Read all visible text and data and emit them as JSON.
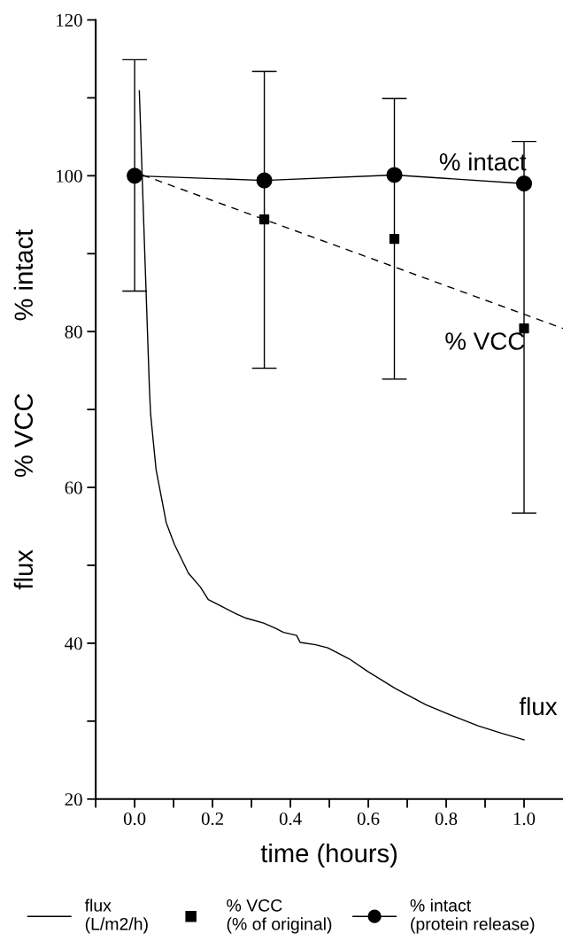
{
  "chart_data": {
    "type": "line",
    "xlabel": "time (hours)",
    "ylabel": "flux          % VCC          % intact",
    "xlim": [
      -0.1,
      1.1
    ],
    "xticks": [
      {
        "value": -0.1,
        "label": null
      },
      {
        "value": 0,
        "label": "0.0"
      },
      {
        "value": 0.1,
        "label": null
      },
      0.2,
      {
        "value": 0.3,
        "label": null
      },
      0.4,
      {
        "value": 0.5,
        "label": null
      },
      0.6,
      {
        "value": 0.7,
        "label": null
      },
      0.8,
      {
        "value": 0.9,
        "label": null
      },
      {
        "value": 1,
        "label": "1.0"
      }
    ],
    "ylim": [
      20,
      120
    ],
    "yticks": [
      20,
      {
        "value": 30,
        "label": null
      },
      40,
      {
        "value": 50,
        "label": null
      },
      60,
      {
        "value": 70,
        "label": null
      },
      80,
      {
        "value": 90,
        "label": null
      },
      100,
      {
        "value": 110,
        "label": null
      },
      120
    ],
    "grid": false,
    "legend": "bottom",
    "series": [
      {
        "name": "flux\n(L/m2/h)",
        "color": "#000000",
        "marker": "none",
        "line_style": "solid",
        "x": [
          0.012,
          0.026,
          0.038,
          0.041,
          0.055,
          0.081,
          0.102,
          0.138,
          0.169,
          0.189,
          0.228,
          0.26,
          0.287,
          0.331,
          0.362,
          0.382,
          0.416,
          0.425,
          0.465,
          0.496,
          0.551,
          0.598,
          0.669,
          0.748,
          0.811,
          0.882,
          0.945,
          1.0
        ],
        "values": [
          110.9,
          90.0,
          72.6,
          69.4,
          62.3,
          55.5,
          52.7,
          49.0,
          47.2,
          45.6,
          44.6,
          43.8,
          43.2,
          42.6,
          41.9,
          41.4,
          41.0,
          40.1,
          39.8,
          39.4,
          38.0,
          36.4,
          34.2,
          32.1,
          30.8,
          29.4,
          28.4,
          27.6
        ]
      },
      {
        "name": "% VCC\n(% of original)",
        "type": "scatter",
        "color": "#000000",
        "marker": "square",
        "x": [
          0.333,
          0.667,
          1.0
        ],
        "values": [
          94.4,
          91.9,
          80.4
        ],
        "errors": [
          [
            75.3,
            113.4
          ],
          [
            73.9,
            109.9
          ],
          [
            56.7,
            104.4
          ]
        ]
      },
      {
        "name": "% intact\n(protein release)",
        "color": "#000000",
        "marker": "circle",
        "line_style": "solid",
        "x": [
          0.0,
          0.333,
          0.667,
          1.0
        ],
        "values": [
          100.0,
          99.4,
          100.1,
          99.0
        ],
        "errors": [
          [
            85.2,
            114.9
          ],
          null,
          null,
          null
        ]
      },
      {
        "color": "#000000",
        "marker": "none",
        "line_style": "dashed",
        "x": [
          0.02,
          1.1
        ],
        "values": [
          100.1,
          80.4
        ]
      }
    ],
    "annotations": [
      "% intact",
      "% VCC",
      "flux"
    ]
  }
}
